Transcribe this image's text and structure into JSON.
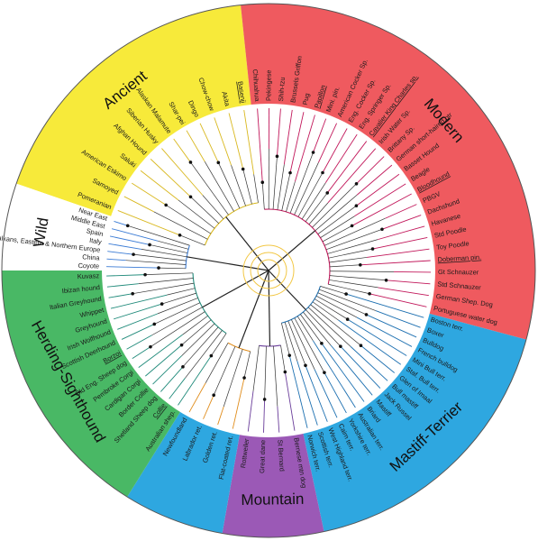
{
  "groups": [
    {
      "id": "ancient",
      "label": "Ancient",
      "color": "#f7ea3a",
      "branch_color": "#d9b81f",
      "breeds": [
        "Pomeranian",
        "Samoyed",
        "American Eskimo",
        "Saluki",
        "Afghan Hound",
        "Siberian Husky",
        "Alaskan Malamute",
        "Shar-pei",
        "Dingo",
        "Chow-chow",
        "Akita",
        "Basenji"
      ]
    },
    {
      "id": "modern",
      "label": "Modern",
      "color": "#ef5a5f",
      "branch_color": "#c2185b",
      "breeds": [
        "Chihuahua",
        "Pekingese",
        "Shih-tzu",
        "Brussels Griffon",
        "Pug",
        "Papillon",
        "Mini. pin.",
        "American Cocker Sp.",
        "Eng. Cocker Sp.",
        "Eng. Springer Sp.",
        "Cavalier King Charles sp.",
        "Irish Water Sp.",
        "Brittany Sp.",
        "German short-haired ptr",
        "Basset Hound",
        "Beagle",
        "Bloodhound",
        "PBGV",
        "Dachshund",
        "Havanese",
        "Std Poodle",
        "Toy Poodle",
        "Doberman pin.",
        "Gt Schnauzer",
        "Std Schnauzer",
        "German Shep. Dog",
        "Portuguese water dog"
      ]
    },
    {
      "id": "mastiff-terrier",
      "label": "Mastiff-Terrier",
      "color": "#2ea7e0",
      "branch_color": "#1c6fb0",
      "breeds": [
        "Boston terr.",
        "Boxer",
        "Bulldog",
        "French bulldog",
        "Mini Bull terr.",
        "Staf. Bull terr.",
        "Glen of Imaal",
        "Bull mastiff",
        "Jack Russel",
        "Mastiff",
        "Briard",
        "Australian terr.",
        "Yorkshire terr.",
        "Cairn terr.",
        "West Highland terr.",
        "Scottish terr.",
        "Norwich terr."
      ]
    },
    {
      "id": "mountain",
      "label": "Mountain",
      "color": "#9b59b6",
      "branch_color": "#6a3d9a",
      "breeds": [
        "Bernese mtn dog",
        "St Bernard",
        "Great dane",
        "Rottweiler"
      ]
    },
    {
      "id": "retriever",
      "label": "",
      "color": "#2ea7e0",
      "branch_color": "#e08c1a",
      "breeds": [
        "Flat-coated ret.",
        "Golden ret.",
        "Labrador ret.",
        "Newfoundland"
      ]
    },
    {
      "id": "herding-sighthound",
      "label": "Herding-Sighthound",
      "color": "#49b865",
      "branch_color": "#1f8a7a",
      "breeds": [
        "Australian shep.",
        "Collie",
        "Shetland Sheep dog",
        "Border Collie",
        "Cardigan Corgi",
        "Pembroke Corgi",
        "Old Eng. Sheep dog",
        "Borzoi",
        "Scottish Deerhound",
        "Irish Wolfhound",
        "Greyhound",
        "Whippet",
        "Italian Greyhound",
        "Ibizan hound",
        "Kuvasz"
      ]
    },
    {
      "id": "wild",
      "label": "Wild",
      "color": "#ffffff",
      "branch_color": "#3a7bd5",
      "breeds": [
        "Coyote",
        "China",
        "Balkans, Eastern & Northern Europe",
        "Italy",
        "Spain",
        "Middle East",
        "Near East"
      ]
    }
  ],
  "underlined_breeds": [
    "Basenji",
    "Papillon",
    "Cavalier King Charles sp.",
    "Bloodhound",
    "Doberman pin.",
    "Borzoi",
    "Collie"
  ]
}
